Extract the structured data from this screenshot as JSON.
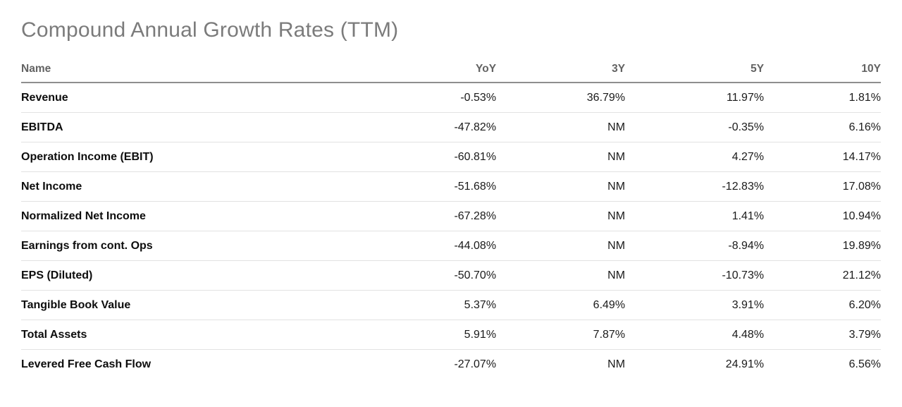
{
  "chart_data": {
    "type": "table",
    "title": "Compound Annual Growth Rates (TTM)",
    "columns": [
      "Name",
      "YoY",
      "3Y",
      "5Y",
      "10Y"
    ],
    "rows": [
      [
        "Revenue",
        "-0.53%",
        "36.79%",
        "11.97%",
        "1.81%"
      ],
      [
        "EBITDA",
        "-47.82%",
        "NM",
        "-0.35%",
        "6.16%"
      ],
      [
        "Operation Income (EBIT)",
        "-60.81%",
        "NM",
        "4.27%",
        "14.17%"
      ],
      [
        "Net Income",
        "-51.68%",
        "NM",
        "-12.83%",
        "17.08%"
      ],
      [
        "Normalized Net Income",
        "-67.28%",
        "NM",
        "1.41%",
        "10.94%"
      ],
      [
        "Earnings from cont. Ops",
        "-44.08%",
        "NM",
        "-8.94%",
        "19.89%"
      ],
      [
        "EPS (Diluted)",
        "-50.70%",
        "NM",
        "-10.73%",
        "21.12%"
      ],
      [
        "Tangible Book Value",
        "5.37%",
        "6.49%",
        "3.91%",
        "6.20%"
      ],
      [
        "Total Assets",
        "5.91%",
        "7.87%",
        "4.48%",
        "3.79%"
      ],
      [
        "Levered Free Cash Flow",
        "-27.07%",
        "NM",
        "24.91%",
        "6.56%"
      ]
    ],
    "not_meaningful_label": "NM"
  },
  "colors": {
    "title_gray": "#7b7b7b",
    "header_gray": "#636363",
    "header_rule": "#8e8e8e",
    "row_divider": "#e2e2e2",
    "row_label": "#0d0d0d",
    "value_text": "#1a1a1a",
    "background": "#ffffff"
  }
}
